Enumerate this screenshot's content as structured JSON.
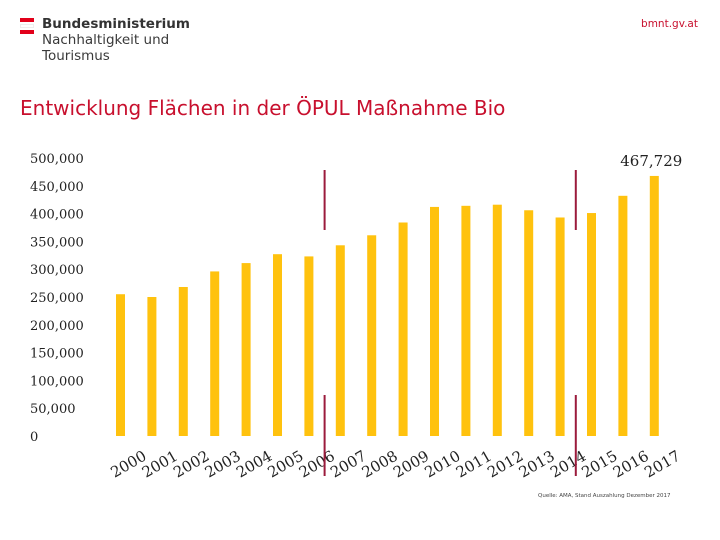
{
  "header": {
    "ministry_line1": "Bundesministerium",
    "ministry_line2": "Nachhaltigkeit und",
    "ministry_line3": "Tourismus",
    "website": "bmnt.gv.at"
  },
  "colors": {
    "accent_red": "#c8102e",
    "bar_yellow": "#ffc20e",
    "marker_red": "#9b1b3c",
    "flag_red": "#e2001a"
  },
  "chart_data": {
    "type": "bar",
    "title": "Entwicklung Flächen in der ÖPUL Maßnahme Bio",
    "categories": [
      "2000",
      "2001",
      "2002",
      "2003",
      "2004",
      "2005",
      "2006",
      "2007",
      "2008",
      "2009",
      "2010",
      "2011",
      "2012",
      "2013",
      "2014",
      "2015",
      "2016",
      "2017"
    ],
    "values": [
      255000,
      250000,
      268000,
      296000,
      311000,
      327000,
      323000,
      343000,
      361000,
      384000,
      412000,
      414000,
      416000,
      406000,
      393000,
      401000,
      432000,
      467729
    ],
    "ylim": [
      0,
      500000
    ],
    "yticks": [
      "0",
      "50,000",
      "100,000",
      "150,000",
      "200,000",
      "250,000",
      "300,000",
      "350,000",
      "400,000",
      "450,000",
      "500,000"
    ],
    "data_label": {
      "category": "2017",
      "text": "467,729"
    },
    "period_markers_between": [
      [
        "2006",
        "2007"
      ],
      [
        "2014",
        "2015"
      ]
    ],
    "grid": false,
    "legend": "none"
  },
  "footer": {
    "source": "Quelle: AMA, Stand Auszahlung Dezember 2017"
  }
}
